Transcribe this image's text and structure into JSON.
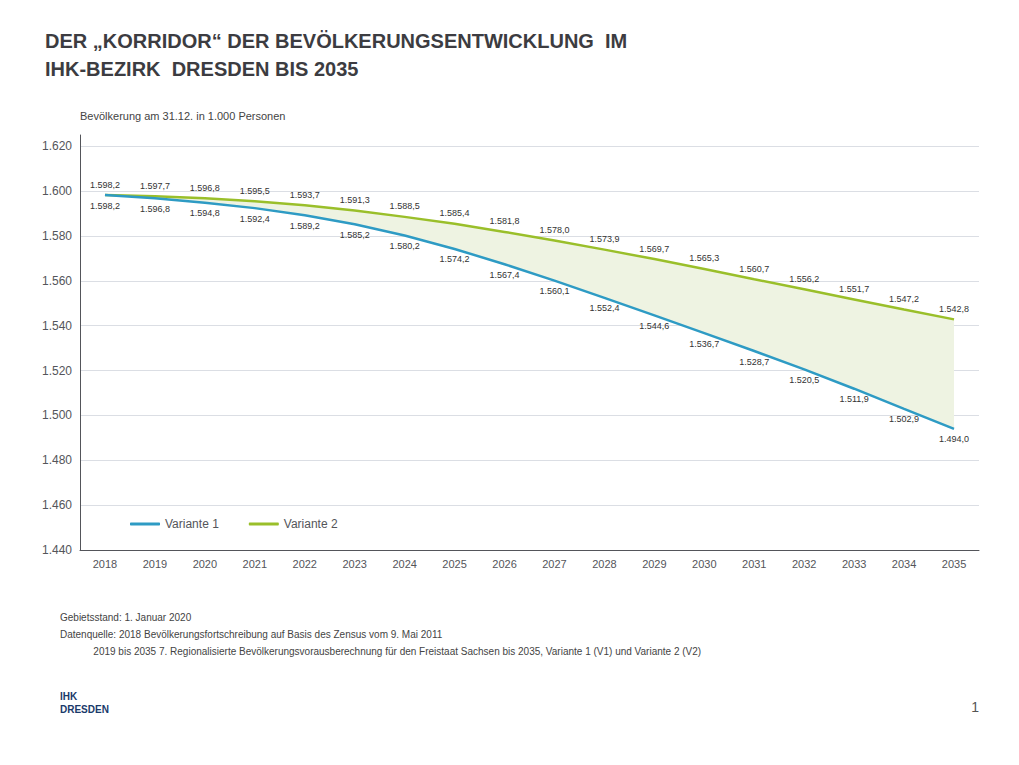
{
  "chart_data": {
    "type": "line",
    "title": "DER „KORRIDOR“ DER BEVÖLKERUNGSENTWICKLUNG  IM\nIHK-BEZIRK  DRESDEN BIS 2035",
    "ylabel": "Bevölkerung am 31.12. in 1.000 Personen",
    "categories": [
      "2018",
      "2019",
      "2020",
      "2021",
      "2022",
      "2023",
      "2024",
      "2025",
      "2026",
      "2027",
      "2028",
      "2029",
      "2030",
      "2031",
      "2032",
      "2033",
      "2034",
      "2035"
    ],
    "series": [
      {
        "name": "Variante 1",
        "color": "#2e9bc4",
        "values": [
          1598.2,
          1596.8,
          1594.8,
          1592.4,
          1589.2,
          1585.2,
          1580.2,
          1574.2,
          1567.4,
          1560.1,
          1552.4,
          1544.6,
          1536.7,
          1528.7,
          1520.5,
          1511.9,
          1502.9,
          1494.0
        ],
        "value_labels": [
          "1.598,2",
          "1.596,8",
          "1.594,8",
          "1.592,4",
          "1.589,2",
          "1.585,2",
          "1.580,2",
          "1.574,2",
          "1.567,4",
          "1.560,1",
          "1.552,4",
          "1.544,6",
          "1.536,7",
          "1.528,7",
          "1.520,5",
          "1.511,9",
          "1.502,9",
          "1.494,0"
        ]
      },
      {
        "name": "Variante 2",
        "color": "#9abf2a",
        "values": [
          1598.2,
          1597.7,
          1596.8,
          1595.5,
          1593.7,
          1591.3,
          1588.5,
          1585.4,
          1581.8,
          1578.0,
          1573.9,
          1569.7,
          1565.3,
          1560.7,
          1556.2,
          1551.7,
          1547.2,
          1542.8
        ],
        "value_labels": [
          "1.598,2",
          "1.597,7",
          "1.596,8",
          "1.595,5",
          "1.593,7",
          "1.591,3",
          "1.588,5",
          "1.585,4",
          "1.581,8",
          "1.578,0",
          "1.573,9",
          "1.569,7",
          "1.565,3",
          "1.560,7",
          "1.556,2",
          "1.551,7",
          "1.547,2",
          "1.542,8"
        ]
      }
    ],
    "fill_between": {
      "series": [
        "Variante 1",
        "Variante 2"
      ],
      "color": "#eef3e2"
    },
    "ylim": [
      1440,
      1625
    ],
    "yticks": [
      {
        "value": 1440,
        "label": "1.440"
      },
      {
        "value": 1460,
        "label": "1.460"
      },
      {
        "value": 1480,
        "label": "1.480"
      },
      {
        "value": 1500,
        "label": "1.500"
      },
      {
        "value": 1520,
        "label": "1.520"
      },
      {
        "value": 1540,
        "label": "1.540"
      },
      {
        "value": 1560,
        "label": "1.560"
      },
      {
        "value": 1580,
        "label": "1.580"
      },
      {
        "value": 1600,
        "label": "1.600"
      },
      {
        "value": 1620,
        "label": "1.620"
      }
    ],
    "grid": true,
    "legend": "lower-left",
    "data_labels": true,
    "footnotes": [
      "Gebietsstand: 1. Januar 2020",
      "Datenquelle: 2018 Bevölkerungsfortschreibung auf Basis des Zensus vom 9. Mai 2011",
      "            2019 bis 2035 7. Regionalisierte Bevölkerungsvorausberechnung für den Freistaat Sachsen bis 2035, Variante 1 (V1) und Variante 2 (V2)"
    ],
    "logo_text": "IHK\nDRESDEN",
    "page_number": "1"
  }
}
